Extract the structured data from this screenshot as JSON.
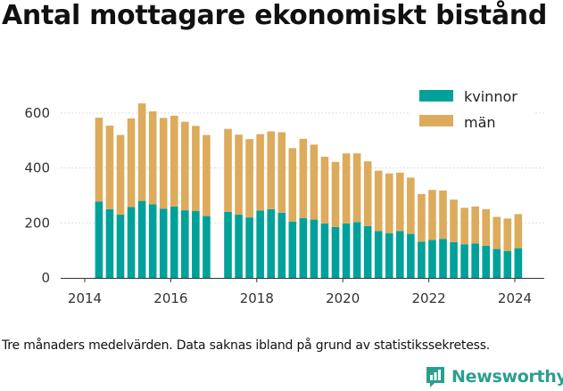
{
  "page": {
    "title": "Antal mottagare ekonomiskt bistånd",
    "footnote": "Tre månaders medelvärden. Data saknas ibland på grund av statistikssekretess.",
    "brand": "Newsworthy"
  },
  "colors": {
    "kvinnor": "#00a19a",
    "man": "#dcab5c",
    "gridline": "#dddddd",
    "axis": "#333333",
    "brand": "#2b9f8f"
  },
  "chart_data": {
    "type": "bar",
    "stacked": true,
    "title": "Antal mottagare ekonomiskt bistånd",
    "xlabel": "",
    "ylabel": "",
    "xlim": [
      2013.5,
      2025.0
    ],
    "ylim": [
      0,
      700
    ],
    "yticks": [
      0,
      200,
      400,
      600
    ],
    "xticks": [
      2014,
      2016,
      2018,
      2020,
      2022,
      2024
    ],
    "grid": "horizontal",
    "legend_position": "top-right",
    "x": [
      2014.33,
      2014.58,
      2014.83,
      2015.08,
      2015.33,
      2015.58,
      2015.83,
      2016.08,
      2016.33,
      2016.58,
      2016.83,
      2017.33,
      2017.58,
      2017.83,
      2018.08,
      2018.33,
      2018.58,
      2018.83,
      2019.08,
      2019.33,
      2019.58,
      2019.83,
      2020.08,
      2020.33,
      2020.58,
      2020.83,
      2021.08,
      2021.33,
      2021.58,
      2021.83,
      2022.08,
      2022.33,
      2022.58,
      2022.83,
      2023.08,
      2023.33,
      2023.58,
      2023.83,
      2024.08
    ],
    "series": [
      {
        "name": "kvinnor",
        "color_key": "kvinnor",
        "values": [
          278,
          250,
          230,
          258,
          280,
          268,
          252,
          260,
          246,
          243,
          225,
          240,
          230,
          220,
          245,
          250,
          237,
          205,
          218,
          212,
          198,
          185,
          198,
          203,
          188,
          170,
          163,
          170,
          160,
          132,
          138,
          142,
          130,
          122,
          125,
          117,
          105,
          98,
          108
        ]
      },
      {
        "name": "män",
        "color_key": "man",
        "values": [
          305,
          304,
          290,
          322,
          355,
          338,
          330,
          330,
          322,
          310,
          295,
          302,
          291,
          285,
          278,
          283,
          293,
          267,
          288,
          273,
          243,
          237,
          255,
          250,
          236,
          220,
          217,
          213,
          205,
          173,
          182,
          176,
          155,
          133,
          135,
          133,
          117,
          118,
          124
        ]
      }
    ]
  }
}
